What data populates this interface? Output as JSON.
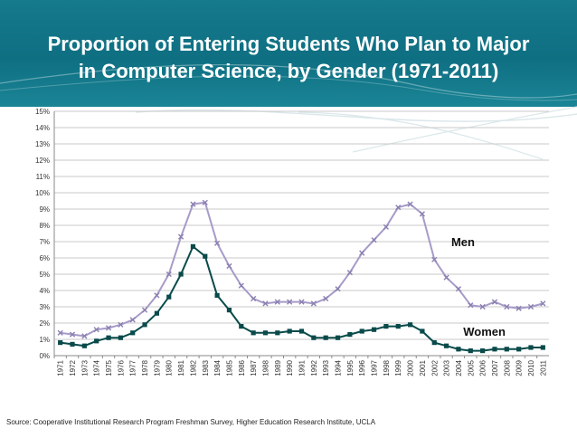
{
  "page": {
    "title_line1": "Proportion of Entering Students Who Plan to Major",
    "title_line2": "in Computer Science, by Gender (1971-2011)",
    "source": "Source: Cooperative Institutional Research Program Freshman Survey, Higher Education Research Institute, UCLA"
  },
  "chart_data": {
    "type": "line",
    "title": "Proportion of Entering Students Who Plan to Major in Computer Science, by Gender (1971-2011)",
    "xlabel": "",
    "ylabel": "",
    "ylim": [
      0,
      15
    ],
    "yticks": [
      "0%",
      "1%",
      "2%",
      "3%",
      "4%",
      "5%",
      "6%",
      "7%",
      "8%",
      "9%",
      "10%",
      "11%",
      "12%",
      "13%",
      "14%",
      "15%"
    ],
    "grid": "horizontal",
    "x": [
      1971,
      1972,
      1973,
      1974,
      1975,
      1976,
      1977,
      1978,
      1979,
      1980,
      1981,
      1982,
      1983,
      1984,
      1985,
      1986,
      1987,
      1988,
      1989,
      1990,
      1991,
      1992,
      1993,
      1994,
      1995,
      1996,
      1997,
      1998,
      1999,
      2000,
      2001,
      2002,
      2003,
      2004,
      2005,
      2006,
      2007,
      2008,
      2009,
      2010,
      2011
    ],
    "series": [
      {
        "name": "Men",
        "color": "#a79bc8",
        "marker": "x",
        "values": [
          1.4,
          1.3,
          1.2,
          1.6,
          1.7,
          1.9,
          2.2,
          2.8,
          3.7,
          5.0,
          7.3,
          9.3,
          9.4,
          6.9,
          5.5,
          4.3,
          3.5,
          3.2,
          3.3,
          3.3,
          3.3,
          3.2,
          3.5,
          4.1,
          5.1,
          6.3,
          7.1,
          7.9,
          9.1,
          9.3,
          8.7,
          5.9,
          4.8,
          4.1,
          3.1,
          3.0,
          3.3,
          3.0,
          2.9,
          3.0,
          3.2
        ]
      },
      {
        "name": "Women",
        "color": "#0a4a4a",
        "marker": "square",
        "values": [
          0.8,
          0.7,
          0.6,
          0.9,
          1.1,
          1.1,
          1.4,
          1.9,
          2.6,
          3.6,
          5.0,
          6.7,
          6.1,
          3.7,
          2.8,
          1.8,
          1.4,
          1.4,
          1.4,
          1.5,
          1.5,
          1.1,
          1.1,
          1.1,
          1.3,
          1.5,
          1.6,
          1.8,
          1.8,
          1.9,
          1.5,
          0.8,
          0.6,
          0.4,
          0.3,
          0.3,
          0.4,
          0.4,
          0.4,
          0.5,
          0.5
        ]
      }
    ],
    "series_labels": [
      {
        "text": "Men",
        "series": "Men"
      },
      {
        "text": "Women",
        "series": "Women"
      }
    ]
  }
}
